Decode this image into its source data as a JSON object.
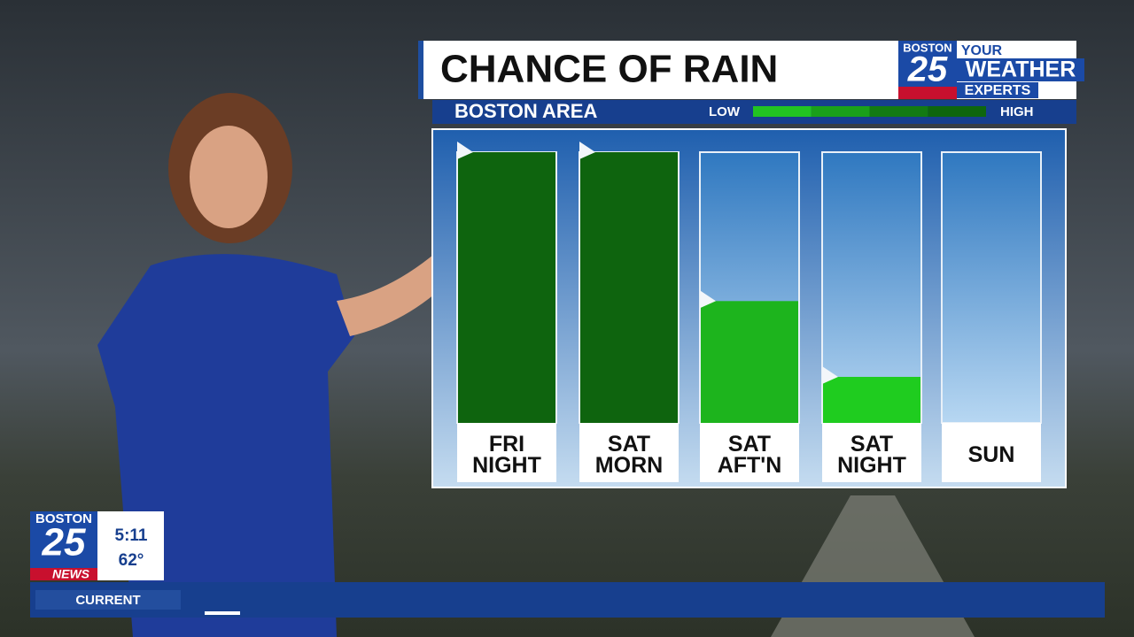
{
  "chart_data": {
    "type": "bar",
    "title": "CHANCE OF RAIN",
    "subtitle": "BOSTON AREA",
    "legend": {
      "low": "LOW",
      "high": "HIGH",
      "colors": [
        "#22c322",
        "#1aa01a",
        "#137a13",
        "#0e660e"
      ]
    },
    "categories": [
      "FRI NIGHT",
      "SAT MORN",
      "SAT AFT'N",
      "SAT NIGHT",
      "SUN"
    ],
    "values": [
      100,
      100,
      45,
      17,
      0
    ],
    "colors": [
      "#0e640e",
      "#0e640e",
      "#1db41d",
      "#1fcc1f",
      "#1fcc1f"
    ],
    "ylim": [
      0,
      100
    ]
  },
  "branding": {
    "station": "BOSTON",
    "number": "25",
    "tag_1": "YOUR",
    "tag_2": "WEATHER",
    "tag_3": "EXPERTS",
    "news": "NEWS"
  },
  "status": {
    "time": "5:11",
    "temperature": "62°"
  },
  "ticker": {
    "label": "CURRENT"
  }
}
